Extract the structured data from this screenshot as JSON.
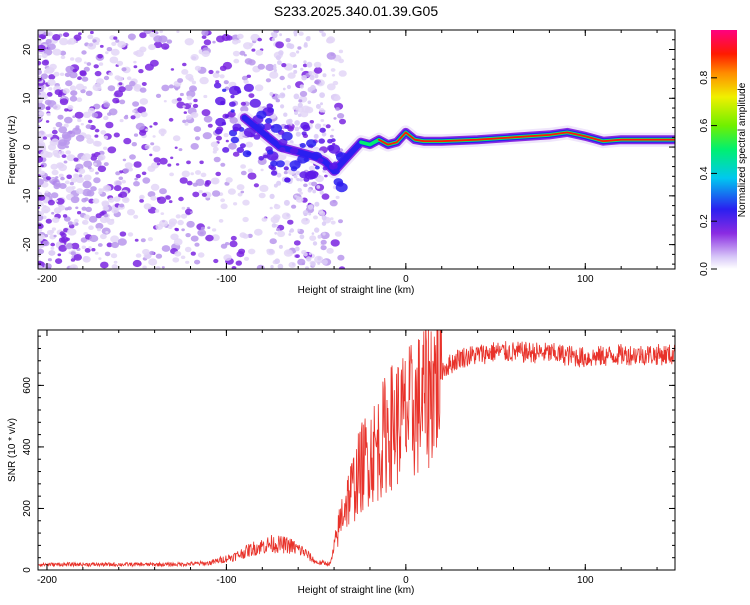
{
  "title": "S233.2025.340.01.39.G05",
  "chart_data": [
    {
      "type": "heatmap",
      "name": "spectrogram",
      "xlabel": "Height of straight line (km)",
      "ylabel": "Frequency (Hz)",
      "xlim": [
        -205,
        150
      ],
      "ylim": [
        -25,
        24
      ],
      "xticks": [
        -200,
        -100,
        0,
        100
      ],
      "yticks": [
        -20,
        -10,
        0,
        10,
        20
      ],
      "ridge": {
        "x": [
          -90,
          -80,
          -70,
          -60,
          -50,
          -45,
          -40,
          -35,
          -30,
          -25,
          -20,
          -15,
          -10,
          -5,
          0,
          5,
          10,
          20,
          40,
          60,
          80,
          90,
          100,
          110,
          120,
          150
        ],
        "y": [
          6,
          3,
          0,
          -1,
          -2,
          -3,
          -5,
          -3,
          -1,
          1,
          0.5,
          1.5,
          0.5,
          1,
          3,
          1.5,
          1.2,
          1.2,
          1.5,
          2.0,
          2.5,
          3.0,
          2.2,
          1.2,
          1.5,
          1.5
        ]
      },
      "colorbar": {
        "label": "Normalized spectral amplitude",
        "ticks": [
          0.0,
          0.2,
          0.4,
          0.6,
          0.8
        ],
        "range": [
          0,
          1
        ]
      }
    },
    {
      "type": "line",
      "name": "snr",
      "xlabel": "Height of straight line (km)",
      "ylabel": "SNR (10 * v/v)",
      "xlim": [
        -205,
        150
      ],
      "ylim": [
        0,
        780
      ],
      "xticks": [
        -200,
        -100,
        0,
        100
      ],
      "yticks": [
        0,
        200,
        400,
        600
      ],
      "color": "#e8322a",
      "envelope": {
        "x": [
          -205,
          -130,
          -110,
          -95,
          -85,
          -75,
          -65,
          -57,
          -50,
          -42,
          -38,
          -35,
          -30,
          -25,
          -20,
          -15,
          -10,
          -5,
          0,
          5,
          10,
          15,
          20,
          30,
          50,
          80,
          100,
          120,
          150
        ],
        "y": [
          18,
          18,
          22,
          45,
          70,
          85,
          80,
          60,
          25,
          20,
          120,
          200,
          260,
          330,
          380,
          400,
          460,
          480,
          500,
          520,
          560,
          610,
          650,
          690,
          710,
          705,
          690,
          700,
          700
        ]
      }
    }
  ]
}
